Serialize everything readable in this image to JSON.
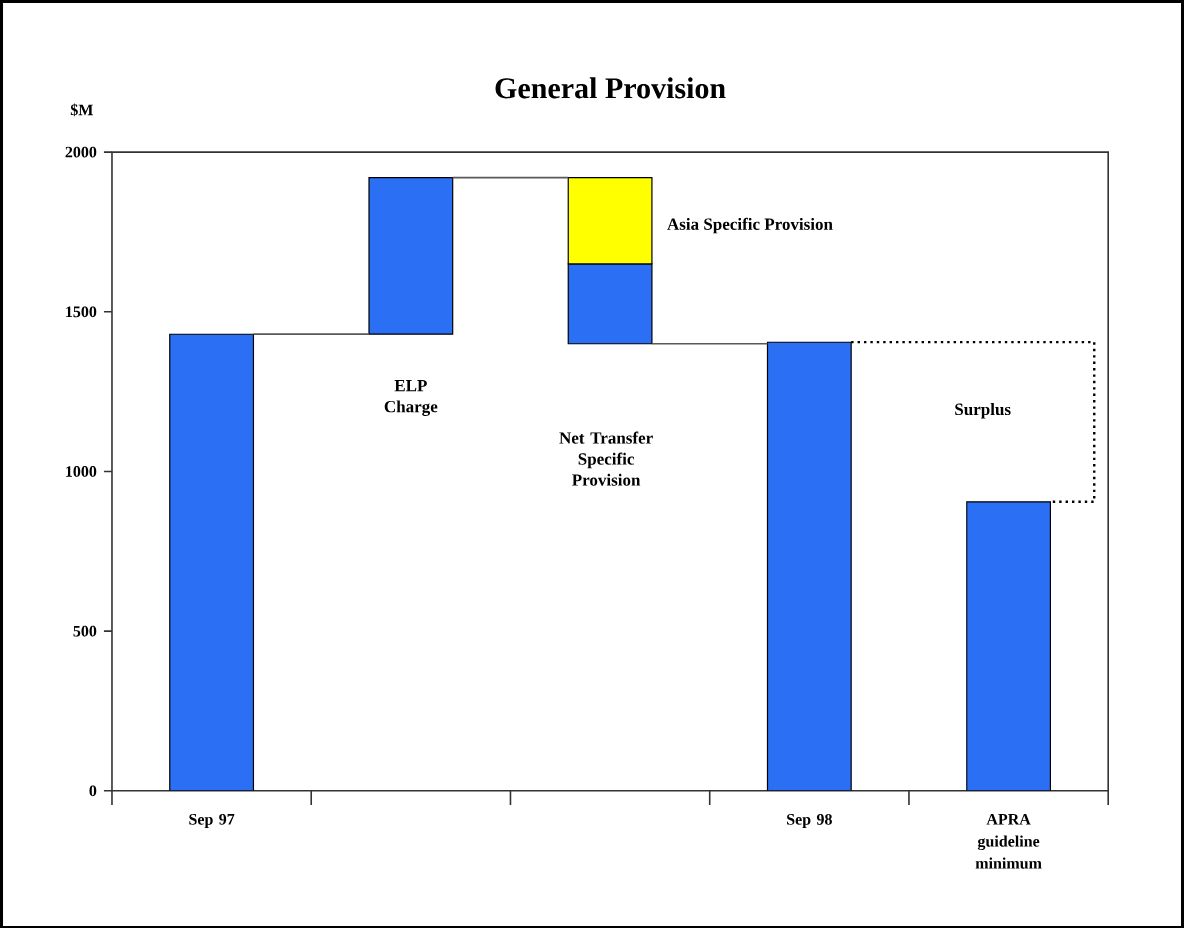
{
  "chart_data": {
    "type": "bar",
    "title": "General Provision",
    "ylabel": "$M",
    "categories": [
      "Sep 97",
      null,
      null,
      "Sep 98",
      "APRA guideline minimum"
    ],
    "series": [
      {
        "color": "#2b6ff5",
        "values": [
          1430,
          490,
          250,
          1405,
          905
        ],
        "base": [
          0,
          1430,
          1400,
          0,
          0
        ]
      },
      {
        "color": "#ffff00",
        "values": [
          null,
          null,
          270,
          null,
          null
        ],
        "base": [
          null,
          null,
          1650,
          null,
          null
        ]
      }
    ],
    "ylim": [
      0,
      2000
    ],
    "yticks": [
      0,
      500,
      1000,
      1500,
      2000
    ],
    "annotations": [
      "ELP Charge",
      "Net Transfer Specific Provision",
      "Asia Specific Provision",
      "Surplus"
    ]
  }
}
